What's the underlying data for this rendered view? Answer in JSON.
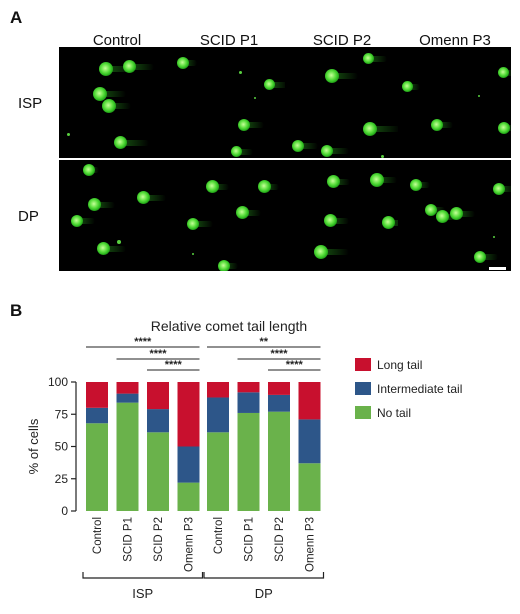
{
  "panel_a": {
    "letter": "A",
    "columns": [
      "Control",
      "SCID P1",
      "SCID P2",
      "Omenn P3"
    ],
    "rows": [
      "ISP",
      "DP"
    ],
    "image_description": "fluorescence micrographs of comet assay nuclei (green) on black background, 2 rows x 4 columns"
  },
  "panel_b": {
    "letter": "B"
  },
  "colors": {
    "long_tail": "#c8102e",
    "intermediate_tail": "#2d5689",
    "no_tail": "#6ab24b",
    "nucleus": "#5ee040"
  },
  "chart_data": {
    "type": "bar",
    "stacked": true,
    "title": "Relative comet tail length",
    "ylabel": "% of cells",
    "ylim": [
      0,
      100
    ],
    "yticks": [
      0,
      25,
      50,
      75,
      100
    ],
    "categories": [
      "Control",
      "SCID P1",
      "SCID P2",
      "Omenn P3",
      "Control",
      "SCID P1",
      "SCID P2",
      "Omenn P3"
    ],
    "groups": [
      {
        "label": "ISP",
        "indices": [
          0,
          1,
          2,
          3
        ]
      },
      {
        "label": "DP",
        "indices": [
          4,
          5,
          6,
          7
        ]
      }
    ],
    "series": [
      {
        "name": "No tail",
        "color": "#6ab24b",
        "values": [
          68,
          84,
          61,
          22,
          61,
          76,
          77,
          37
        ]
      },
      {
        "name": "Intermediate tail",
        "color": "#2d5689",
        "values": [
          12,
          7,
          18,
          28,
          27,
          16,
          13,
          34
        ]
      },
      {
        "name": "Long tail",
        "color": "#c8102e",
        "values": [
          20,
          9,
          21,
          50,
          12,
          8,
          10,
          29
        ]
      }
    ],
    "legend_order": [
      "Long tail",
      "Intermediate tail",
      "No tail"
    ],
    "legend_position": "right",
    "significance": [
      {
        "from": 0,
        "to": 3,
        "label": "****"
      },
      {
        "from": 1,
        "to": 3,
        "label": "****"
      },
      {
        "from": 2,
        "to": 3,
        "label": "****"
      },
      {
        "from": 4,
        "to": 7,
        "label": "**"
      },
      {
        "from": 5,
        "to": 7,
        "label": "****"
      },
      {
        "from": 6,
        "to": 7,
        "label": "****"
      }
    ]
  }
}
